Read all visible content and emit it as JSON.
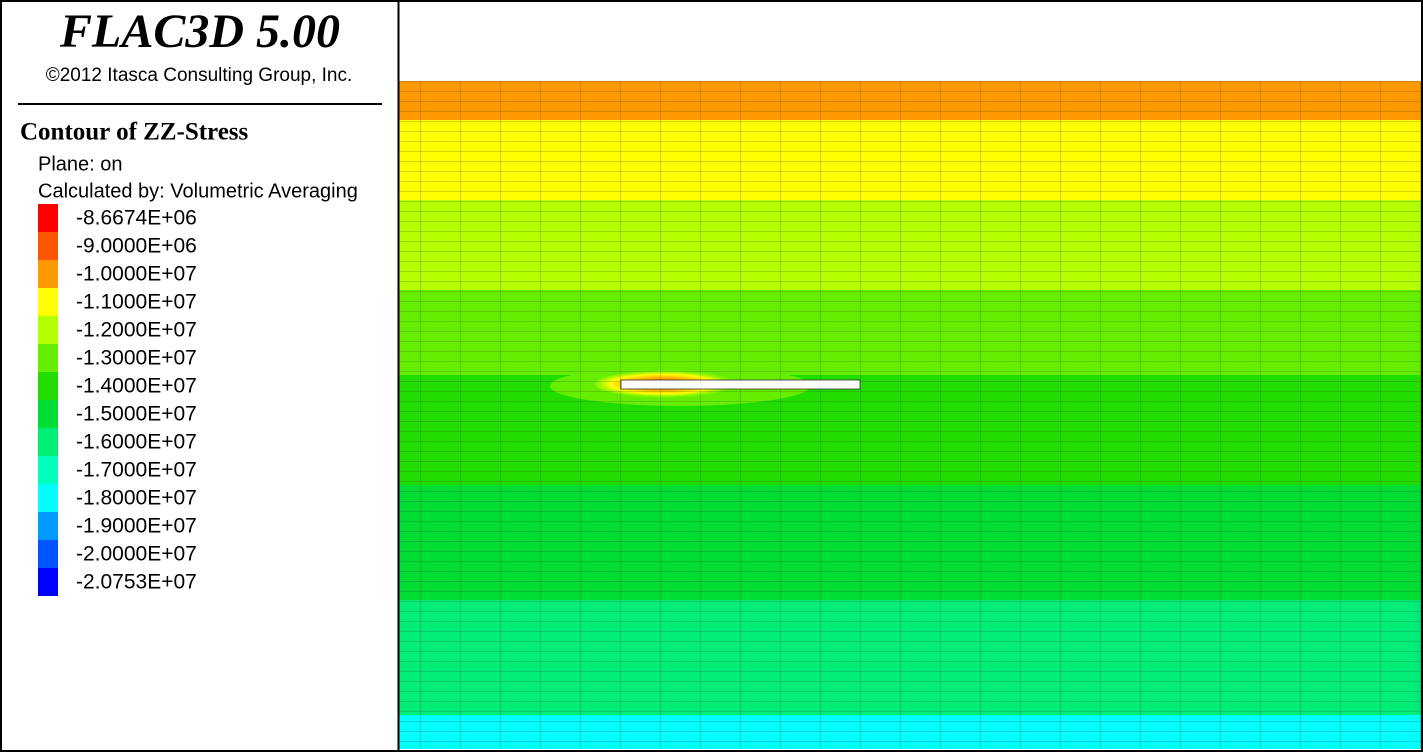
{
  "header": {
    "title": "FLAC3D 5.00",
    "copyright": "©2012 Itasca Consulting Group, Inc."
  },
  "legend": {
    "title": "Contour of ZZ-Stress",
    "lines": [
      "Plane: on",
      "Calculated by: Volumetric Averaging"
    ],
    "levels": [
      {
        "label": "-8.6674E+06",
        "color": "#ff0000"
      },
      {
        "label": "-9.0000E+06",
        "color": "#ff5500"
      },
      {
        "label": "-1.0000E+07",
        "color": "#ff9900"
      },
      {
        "label": "-1.1000E+07",
        "color": "#ffff00"
      },
      {
        "label": "-1.2000E+07",
        "color": "#b4ff00"
      },
      {
        "label": "-1.3000E+07",
        "color": "#66ee00"
      },
      {
        "label": "-1.4000E+07",
        "color": "#22dd00"
      },
      {
        "label": "-1.5000E+07",
        "color": "#00dd33"
      },
      {
        "label": "-1.6000E+07",
        "color": "#00ee77"
      },
      {
        "label": "-1.7000E+07",
        "color": "#00ffbb"
      },
      {
        "label": "-1.8000E+07",
        "color": "#00ffff"
      },
      {
        "label": "-1.9000E+07",
        "color": "#0099ff"
      },
      {
        "label": "-2.0000E+07",
        "color": "#0055ff"
      },
      {
        "label": "-2.0753E+07",
        "color": "#0000ff"
      }
    ]
  }
}
